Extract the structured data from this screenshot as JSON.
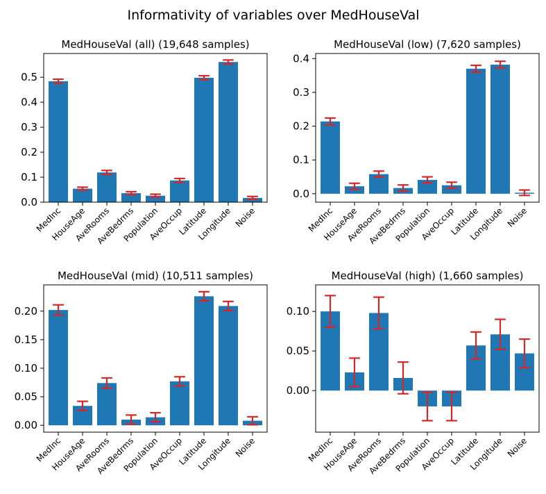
{
  "suptitle": "Informativity of variables over MedHouseVal",
  "colors": {
    "bar": "#1f77b4",
    "error": "#d62728"
  },
  "chart_data": [
    {
      "type": "bar",
      "title": "MedHouseVal (all) (19,648 samples)",
      "categories": [
        "MedInc",
        "HouseAge",
        "AveRooms",
        "AveBedrms",
        "Population",
        "AveOccup",
        "Latitude",
        "Longitude",
        "Noise"
      ],
      "values": [
        0.484,
        0.054,
        0.119,
        0.036,
        0.026,
        0.087,
        0.498,
        0.561,
        0.017
      ],
      "errors": [
        0.008,
        0.006,
        0.008,
        0.006,
        0.006,
        0.008,
        0.008,
        0.008,
        0.006
      ],
      "ylim": [
        0,
        0.595
      ],
      "yticks": [
        0.0,
        0.1,
        0.2,
        0.3,
        0.4,
        0.5
      ],
      "ytick_labels": [
        "0.0",
        "0.1",
        "0.2",
        "0.3",
        "0.4",
        "0.5"
      ]
    },
    {
      "type": "bar",
      "title": "MedHouseVal (low) (7,620 samples)",
      "categories": [
        "MedInc",
        "HouseAge",
        "AveRooms",
        "AveBedrms",
        "Population",
        "AveOccup",
        "Latitude",
        "Longitude",
        "Noise"
      ],
      "values": [
        0.214,
        0.022,
        0.058,
        0.017,
        0.041,
        0.025,
        0.37,
        0.382,
        0.003
      ],
      "errors": [
        0.01,
        0.009,
        0.009,
        0.009,
        0.009,
        0.009,
        0.01,
        0.01,
        0.008
      ],
      "ylim": [
        -0.025,
        0.415
      ],
      "yticks": [
        0.0,
        0.1,
        0.2,
        0.3,
        0.4
      ],
      "ytick_labels": [
        "0.0",
        "0.1",
        "0.2",
        "0.3",
        "0.4"
      ]
    },
    {
      "type": "bar",
      "title": "MedHouseVal (mid) (10,511 samples)",
      "categories": [
        "MedInc",
        "HouseAge",
        "AveRooms",
        "AveBedrms",
        "Population",
        "AveOccup",
        "Latitude",
        "Longitude",
        "Noise"
      ],
      "values": [
        0.202,
        0.034,
        0.074,
        0.01,
        0.014,
        0.077,
        0.226,
        0.209,
        0.008
      ],
      "errors": [
        0.009,
        0.008,
        0.009,
        0.008,
        0.008,
        0.008,
        0.008,
        0.008,
        0.007
      ],
      "ylim": [
        -0.012,
        0.246
      ],
      "yticks": [
        0.0,
        0.05,
        0.1,
        0.15,
        0.2
      ],
      "ytick_labels": [
        "0.00",
        "0.05",
        "0.10",
        "0.15",
        "0.20"
      ]
    },
    {
      "type": "bar",
      "title": "MedHouseVal (high) (1,660 samples)",
      "categories": [
        "MedInc",
        "HouseAge",
        "AveRooms",
        "AveBedrms",
        "Population",
        "AveOccup",
        "Latitude",
        "Longitude",
        "Noise"
      ],
      "values": [
        0.1,
        0.023,
        0.098,
        0.016,
        -0.02,
        -0.02,
        0.057,
        0.071,
        0.047
      ],
      "errors": [
        0.02,
        0.018,
        0.02,
        0.02,
        0.018,
        0.018,
        0.017,
        0.019,
        0.018
      ],
      "ylim": [
        -0.0525,
        0.1335
      ],
      "yticks": [
        0.0,
        0.05,
        0.1
      ],
      "ytick_labels": [
        "0.00",
        "0.05",
        "0.10"
      ]
    }
  ]
}
